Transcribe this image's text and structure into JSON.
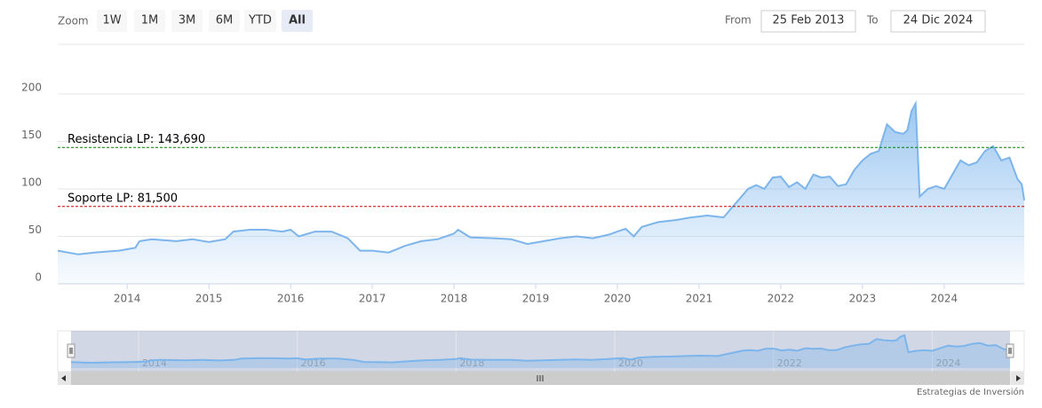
{
  "toolbar": {
    "zoom_label": "Zoom",
    "buttons": [
      "1W",
      "1M",
      "3M",
      "6M",
      "YTD",
      "All"
    ],
    "active_button": "All",
    "from_label": "From",
    "from": "25 Feb 2013",
    "to_label": "To",
    "to": "24 Dic 2024"
  },
  "chart_data": {
    "type": "area",
    "x": [
      2013.15,
      2013.4,
      2013.6,
      2013.9,
      2014.1,
      2014.15,
      2014.3,
      2014.6,
      2014.8,
      2015.0,
      2015.2,
      2015.3,
      2015.5,
      2015.7,
      2015.9,
      2016.0,
      2016.1,
      2016.3,
      2016.5,
      2016.7,
      2016.85,
      2017.0,
      2017.2,
      2017.4,
      2017.6,
      2017.8,
      2018.0,
      2018.05,
      2018.2,
      2018.5,
      2018.7,
      2018.9,
      2019.1,
      2019.3,
      2019.5,
      2019.7,
      2019.9,
      2020.0,
      2020.1,
      2020.2,
      2020.3,
      2020.5,
      2020.7,
      2020.9,
      2021.1,
      2021.3,
      2021.4,
      2021.5,
      2021.6,
      2021.7,
      2021.8,
      2021.9,
      2022.0,
      2022.1,
      2022.2,
      2022.3,
      2022.4,
      2022.5,
      2022.6,
      2022.7,
      2022.8,
      2022.9,
      2023.0,
      2023.1,
      2023.2,
      2023.3,
      2023.4,
      2023.5,
      2023.55,
      2023.6,
      2023.65,
      2023.7,
      2023.8,
      2023.9,
      2024.0,
      2024.1,
      2024.2,
      2024.3,
      2024.4,
      2024.5,
      2024.6,
      2024.7,
      2024.8,
      2024.9,
      2024.95,
      2024.98
    ],
    "series": [
      {
        "color": "#7cb5ec",
        "values": [
          35,
          31,
          33,
          35,
          38,
          45,
          47,
          45,
          47,
          44,
          47,
          55,
          57,
          57,
          55,
          57,
          50,
          55,
          55,
          48,
          35,
          35,
          33,
          40,
          45,
          47,
          53,
          57,
          49,
          48,
          47,
          42,
          45,
          48,
          50,
          48,
          52,
          55,
          58,
          50,
          60,
          65,
          67,
          70,
          72,
          70,
          80,
          90,
          100,
          104,
          100,
          112,
          113,
          102,
          107,
          100,
          115,
          112,
          113,
          103,
          105,
          120,
          130,
          137,
          140,
          168,
          160,
          158,
          162,
          182,
          190,
          92,
          100,
          103,
          100,
          115,
          130,
          125,
          128,
          140,
          145,
          130,
          133,
          110,
          105,
          88
        ]
      }
    ],
    "xlim": [
      2013.15,
      2024.98
    ],
    "xticks": [
      2014,
      2015,
      2016,
      2017,
      2018,
      2019,
      2020,
      2021,
      2022,
      2023,
      2024
    ],
    "ylim": [
      0,
      250
    ],
    "yticks": [
      0,
      50,
      100,
      150,
      200
    ],
    "grid": true,
    "plot_lines": [
      {
        "value": 143.69,
        "label": "Resistencia LP: 143,690",
        "color": "#008000"
      },
      {
        "value": 81.5,
        "label": "Soporte LP: 81,500",
        "color": "#cc0000"
      }
    ],
    "navigator": {
      "xticks": [
        2014,
        2016,
        2018,
        2020,
        2022,
        2024
      ]
    }
  },
  "credits": "Estrategias de Inversión"
}
